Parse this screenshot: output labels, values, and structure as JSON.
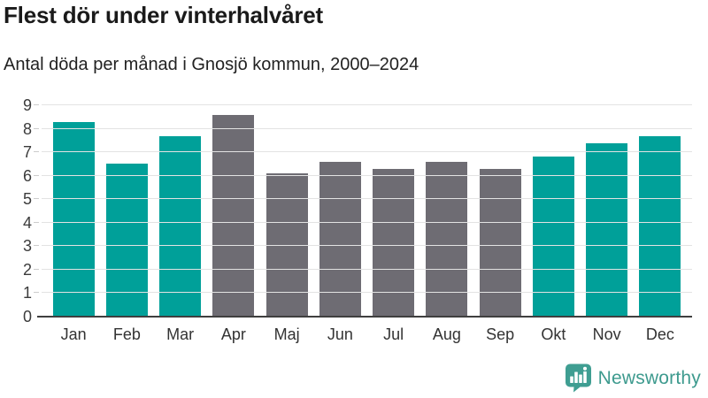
{
  "header": {
    "title": "Flest dör under vinterhalvåret",
    "subtitle": "Antal döda per månad i Gnosjö kommun, 2000–2024"
  },
  "chart_data": {
    "type": "bar",
    "title": "Flest dör under vinterhalvåret",
    "subtitle": "Antal döda per månad i Gnosjö kommun, 2000–2024",
    "categories": [
      "Jan",
      "Feb",
      "Mar",
      "Apr",
      "Maj",
      "Jun",
      "Jul",
      "Aug",
      "Sep",
      "Okt",
      "Nov",
      "Dec"
    ],
    "values": [
      8.3,
      6.5,
      7.7,
      8.6,
      6.1,
      6.6,
      6.3,
      6.6,
      6.3,
      6.8,
      7.4,
      7.7
    ],
    "bar_color_keys": [
      "winter",
      "winter",
      "winter",
      "summer",
      "summer",
      "summer",
      "summer",
      "summer",
      "summer",
      "winter",
      "winter",
      "winter"
    ],
    "palette": {
      "winter": "#00a099",
      "summer": "#6e6c73"
    },
    "xlabel": "",
    "ylabel": "",
    "ylim": [
      0,
      9
    ],
    "yticks": [
      0,
      1,
      2,
      3,
      4,
      5,
      6,
      7,
      8,
      9
    ],
    "grid": true,
    "legend": "none",
    "axis_colors": {
      "gridline": "#e3e3e3",
      "tick": "#cccccc",
      "baseline": "#3f3f3f",
      "tick_text": "#3b3b3b"
    }
  },
  "footer": {
    "brand": "Newsworthy",
    "logo_icon": "newsworthy-speech-bubble-barchart-icon",
    "brand_color": "#3d9a8e",
    "icon_color": "#3f9e92"
  }
}
